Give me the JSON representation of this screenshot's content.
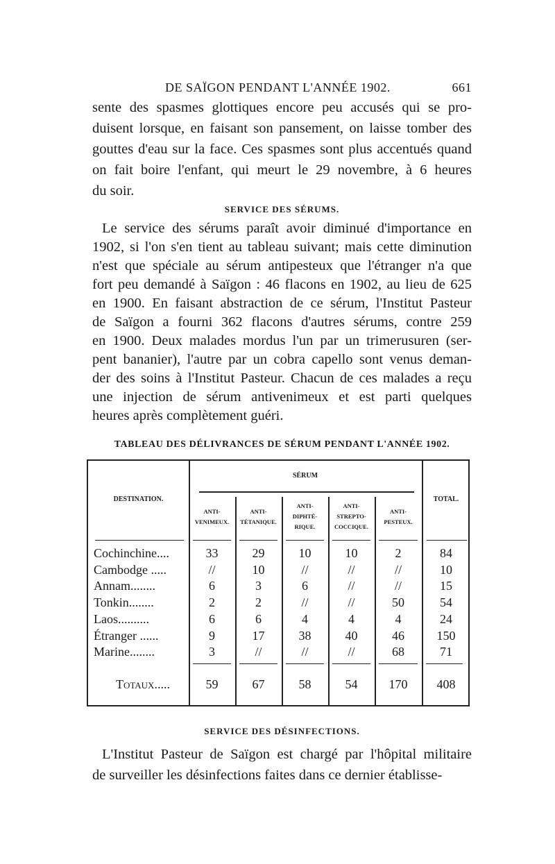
{
  "header": {
    "title": "DE SAÏGON PENDANT L'ANNÉE 1902.",
    "page_number": "661"
  },
  "paragraph1": [
    "sente des spasmes glottiques encore peu accusés qui se pro-",
    "duisent lorsque, en faisant son pansement, on laisse tomber des",
    "gouttes d'eau sur la face. Ces spasmes sont plus accentués quand",
    "on fait boire l'enfant, qui meurt le 29 novembre, à 6 heures",
    "du soir."
  ],
  "section1": "SERVICE DES SÉRUMS.",
  "paragraph2": [
    "Le service des sérums paraît avoir diminué d'importance en",
    "1902, si l'on s'en tient au tableau suivant; mais cette diminution",
    "n'est que spéciale au sérum antipesteux que l'étranger n'a que",
    "fort peu demandé à Saïgon : 46 flacons en 1902, au lieu de 625",
    "en 1900. En faisant abstraction de ce sérum, l'Institut Pasteur",
    "de Saïgon a fourni 362 flacons d'autres sérums, contre 259",
    "en 1900. Deux malades mordus l'un par un trimerusuren (ser-",
    "pent bananier), l'autre par un cobra capello sont venus deman-",
    "der des soins à l'Institut Pasteur. Chacun de ces malades a reçu",
    "une injection de sérum antivenimeux et est parti quelques",
    "heures après complètement guéri."
  ],
  "table": {
    "title": "TABLEAU DES DÉLIVRANCES DE SÉRUM PENDANT L'ANNÉE 1902.",
    "destination_header": "DESTINATION.",
    "serum_header": "SÉRUM",
    "total_header": "TOTAL.",
    "columns": [
      [
        "ANTI-",
        "VENIMEUX."
      ],
      [
        "ANTI-",
        "TÉTANIQUE."
      ],
      [
        "ANTI-",
        "DIPHTÉ-",
        "RIQUE."
      ],
      [
        "ANTI-",
        "STREPTO-",
        "COCCIQUE."
      ],
      [
        "ANTI-",
        "PESTEUX."
      ]
    ],
    "rows": [
      {
        "dest": "Cochinchine....",
        "v": [
          "33",
          "29",
          "10",
          "10",
          "2",
          "84"
        ]
      },
      {
        "dest": "Cambodge .....",
        "v": [
          "//",
          "10",
          "//",
          "//",
          "//",
          "10"
        ]
      },
      {
        "dest": "Annam........",
        "v": [
          "6",
          "3",
          "6",
          "//",
          "//",
          "15"
        ]
      },
      {
        "dest": "Tonkin........",
        "v": [
          "2",
          "2",
          "//",
          "//",
          "50",
          "54"
        ]
      },
      {
        "dest": "Laos..........",
        "v": [
          "6",
          "6",
          "4",
          "4",
          "4",
          "24"
        ]
      },
      {
        "dest": "Étranger ......",
        "v": [
          "9",
          "17",
          "38",
          "40",
          "46",
          "150"
        ]
      },
      {
        "dest": "Marine........",
        "v": [
          "3",
          "//",
          "//",
          "//",
          "68",
          "71"
        ]
      }
    ],
    "totals": {
      "label": "Totaux.....",
      "v": [
        "59",
        "67",
        "58",
        "54",
        "170",
        "408"
      ]
    }
  },
  "section2": "SERVICE DES DÉSINFECTIONS.",
  "paragraph3": [
    "L'Institut Pasteur de Saïgon est chargé par l'hôpital militaire",
    "de surveiller les désinfections faites dans ce dernier établisse-"
  ]
}
